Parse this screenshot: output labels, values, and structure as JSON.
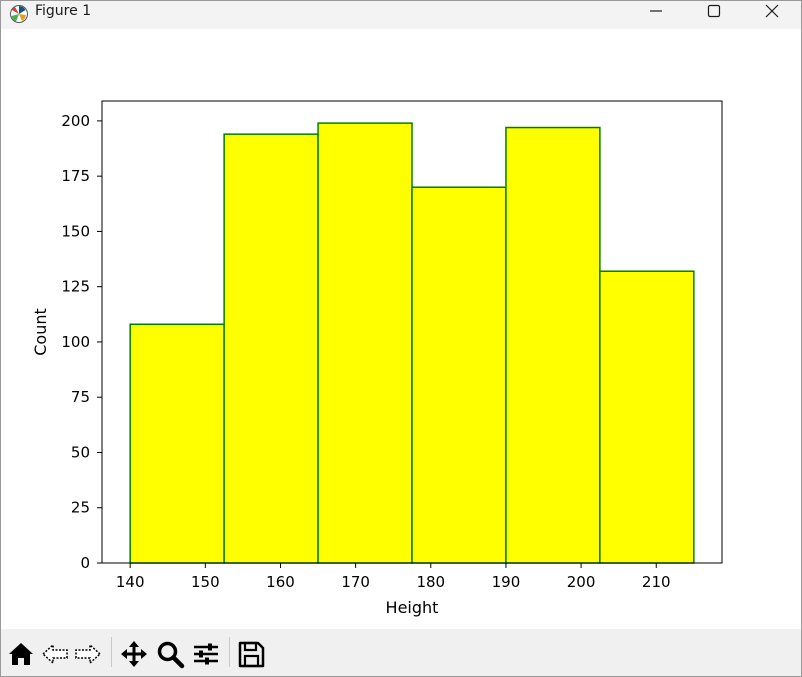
{
  "window": {
    "title": "Figure 1"
  },
  "toolbar": {
    "buttons": [
      {
        "name": "home-icon",
        "tooltip": "Home"
      },
      {
        "name": "back-icon",
        "tooltip": "Back"
      },
      {
        "name": "forward-icon",
        "tooltip": "Forward"
      },
      {
        "name": "pan-icon",
        "tooltip": "Pan"
      },
      {
        "name": "zoom-icon",
        "tooltip": "Zoom"
      },
      {
        "name": "configure-subplots-icon",
        "tooltip": "Configure subplots"
      },
      {
        "name": "save-icon",
        "tooltip": "Save"
      }
    ]
  },
  "chart_data": {
    "type": "bar",
    "subtype": "histogram",
    "bin_edges": [
      140,
      152.5,
      165,
      177.5,
      190,
      202.5,
      215
    ],
    "values": [
      108,
      194,
      199,
      170,
      197,
      132
    ],
    "xlabel": "Height",
    "ylabel": "Count",
    "xlim": [
      136.25,
      218.75
    ],
    "ylim": [
      0,
      209
    ],
    "xticks": [
      140,
      150,
      160,
      170,
      180,
      190,
      200,
      210
    ],
    "yticks": [
      0,
      25,
      50,
      75,
      100,
      125,
      150,
      175,
      200
    ],
    "grid": false,
    "bar_fill": "#ffff00",
    "bar_edge": "#008000"
  }
}
